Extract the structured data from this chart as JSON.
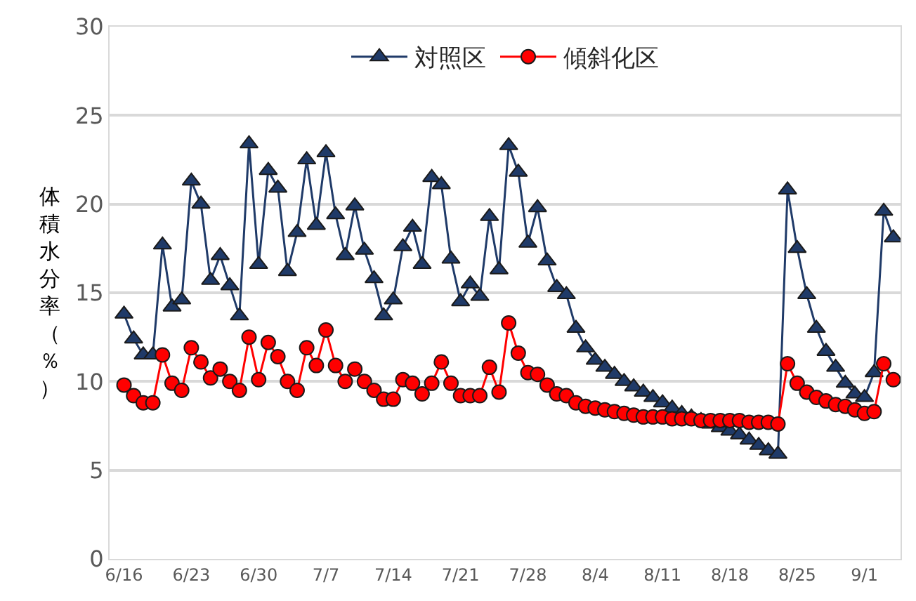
{
  "chart_data": {
    "type": "line",
    "ylabel": "体積水分率（％）",
    "x": [
      "--06-16",
      "--06-17",
      "--06-18",
      "--06-19",
      "--06-20",
      "--06-21",
      "--06-22",
      "--06-23",
      "--06-24",
      "--06-25",
      "--06-26",
      "--06-27",
      "--06-28",
      "--06-29",
      "--06-30",
      "--07-01",
      "--07-02",
      "--07-03",
      "--07-04",
      "--07-05",
      "--07-06",
      "--07-07",
      "--07-08",
      "--07-09",
      "--07-10",
      "--07-11",
      "--07-12",
      "--07-13",
      "--07-14",
      "--07-15",
      "--07-16",
      "--07-17",
      "--07-18",
      "--07-19",
      "--07-20",
      "--07-21",
      "--07-22",
      "--07-23",
      "--07-24",
      "--07-25",
      "--07-26",
      "--07-27",
      "--07-28",
      "--07-29",
      "--07-30",
      "--07-31",
      "--08-01",
      "--08-02",
      "--08-03",
      "--08-04",
      "--08-05",
      "--08-06",
      "--08-07",
      "--08-08",
      "--08-09",
      "--08-10",
      "--08-11",
      "--08-12",
      "--08-13",
      "--08-14",
      "--08-15",
      "--08-16",
      "--08-17",
      "--08-18",
      "--08-19",
      "--08-20",
      "--08-21",
      "--08-22",
      "--08-23",
      "--08-24",
      "--08-25",
      "--08-26",
      "--08-27",
      "--08-28",
      "--08-29",
      "--08-30",
      "--08-31",
      "--09-01",
      "--09-02",
      "--09-03",
      "--09-04"
    ],
    "series": [
      {
        "name": "対照区",
        "color": "#1f3a68",
        "marker": "triangle",
        "values": [
          13.8,
          12.4,
          11.5,
          11.5,
          17.7,
          14.2,
          14.6,
          21.3,
          20.0,
          15.7,
          17.1,
          15.4,
          13.7,
          23.4,
          16.6,
          21.9,
          20.9,
          16.2,
          18.4,
          22.5,
          18.8,
          22.9,
          19.4,
          17.1,
          19.9,
          17.4,
          15.8,
          13.7,
          14.6,
          17.6,
          18.7,
          16.6,
          21.5,
          21.1,
          16.9,
          14.5,
          15.5,
          14.8,
          19.3,
          16.3,
          23.3,
          21.8,
          17.8,
          19.8,
          16.8,
          15.3,
          14.9,
          13.0,
          11.9,
          11.2,
          10.8,
          10.4,
          10.0,
          9.7,
          9.4,
          9.1,
          8.8,
          8.5,
          8.2,
          8.0,
          7.8,
          7.6,
          7.4,
          7.2,
          7.0,
          6.7,
          6.4,
          6.1,
          5.9,
          20.8,
          17.5,
          14.9,
          13.0,
          11.7,
          10.8,
          9.9,
          9.3,
          9.1,
          10.5,
          19.6,
          18.1
        ]
      },
      {
        "name": "傾斜化区",
        "color": "#ff0000",
        "marker": "circle",
        "values": [
          9.8,
          9.2,
          8.8,
          8.8,
          11.5,
          9.9,
          9.5,
          11.9,
          11.1,
          10.2,
          10.7,
          10.0,
          9.5,
          12.5,
          10.1,
          12.2,
          11.4,
          10.0,
          9.5,
          11.9,
          10.9,
          12.9,
          10.9,
          10.0,
          10.7,
          10.0,
          9.5,
          9.0,
          9.0,
          10.1,
          9.9,
          9.3,
          9.9,
          11.1,
          9.9,
          9.2,
          9.2,
          9.2,
          10.8,
          9.4,
          13.3,
          11.6,
          10.5,
          10.4,
          9.8,
          9.3,
          9.2,
          8.8,
          8.6,
          8.5,
          8.4,
          8.3,
          8.2,
          8.1,
          8.0,
          8.0,
          8.0,
          7.9,
          7.9,
          7.9,
          7.8,
          7.8,
          7.8,
          7.8,
          7.8,
          7.7,
          7.7,
          7.7,
          7.6,
          11.0,
          9.9,
          9.4,
          9.1,
          8.9,
          8.7,
          8.6,
          8.4,
          8.2,
          8.3,
          11.0,
          10.1
        ]
      }
    ],
    "xlim": [
      "--06-14T12:00",
      "--09-04T18:00"
    ],
    "xticks": [
      {
        "value": "--06-16",
        "label": "6/16"
      },
      {
        "value": "--06-23",
        "label": "6/23"
      },
      {
        "value": "--06-30",
        "label": "6/30"
      },
      {
        "value": "--07-07",
        "label": "7/7"
      },
      {
        "value": "--07-14",
        "label": "7/14"
      },
      {
        "value": "--07-21",
        "label": "7/21"
      },
      {
        "value": "--07-28",
        "label": "7/28"
      },
      {
        "value": "--08-04",
        "label": "8/4"
      },
      {
        "value": "--08-11",
        "label": "8/11"
      },
      {
        "value": "--08-18",
        "label": "8/18"
      },
      {
        "value": "--08-25",
        "label": "8/25"
      },
      {
        "value": "--09-01",
        "label": "9/1"
      }
    ],
    "ylim": [
      0,
      30
    ],
    "yticks": [
      0,
      5,
      10,
      15,
      20,
      25,
      30
    ],
    "grid": "y",
    "legend": "top",
    "line_style": "solid"
  }
}
